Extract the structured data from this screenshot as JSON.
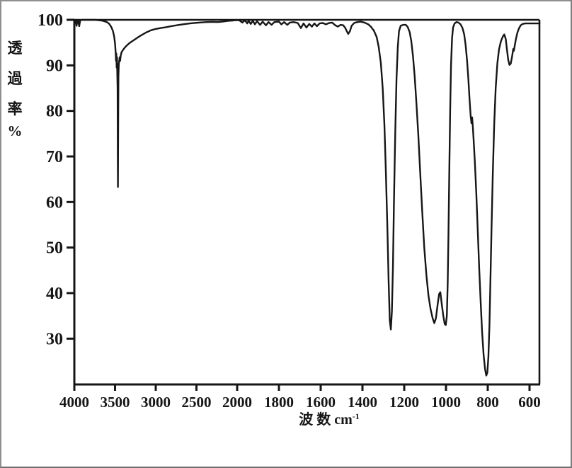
{
  "figure": {
    "background": "#ffffff",
    "ink_color": "#161616",
    "border_color": "#8f8f8f"
  },
  "chart_data": {
    "type": "line",
    "title": "",
    "xlabel_prefix": "波 数 cm",
    "xlabel_sup": "-1",
    "ylabel_chars": [
      "透",
      "過",
      "率",
      "%"
    ],
    "x_axis": {
      "ticks": [
        4000,
        3500,
        3000,
        2500,
        2000,
        1800,
        1600,
        1400,
        1200,
        1000,
        800,
        600
      ],
      "range": [
        4000,
        550
      ],
      "scale_note": "dual linear scale: 500/div above 2000 cm-1, 200/div below",
      "unit": "cm-1"
    },
    "y_axis": {
      "ticks": [
        100,
        90,
        80,
        70,
        60,
        50,
        40,
        30
      ],
      "range": [
        20,
        100
      ],
      "unit": "%"
    },
    "grid": false,
    "legend": false,
    "series": [
      {
        "name": "transmittance",
        "color": "#161616",
        "points": [
          [
            4000,
            99.9
          ],
          [
            3990,
            100
          ],
          [
            3982,
            99.9
          ],
          [
            3972,
            98.7
          ],
          [
            3962,
            99.9
          ],
          [
            3952,
            99.7
          ],
          [
            3940,
            98.6
          ],
          [
            3928,
            99.9
          ],
          [
            3900,
            100
          ],
          [
            3820,
            100
          ],
          [
            3750,
            100
          ],
          [
            3700,
            99.9
          ],
          [
            3650,
            99.8
          ],
          [
            3600,
            99.5
          ],
          [
            3570,
            99.1
          ],
          [
            3545,
            98.4
          ],
          [
            3525,
            97.5
          ],
          [
            3510,
            96.3
          ],
          [
            3500,
            94.8
          ],
          [
            3493,
            93
          ],
          [
            3488,
            91
          ],
          [
            3484,
            92.6
          ],
          [
            3480,
            89.5
          ],
          [
            3476,
            91.8
          ],
          [
            3472,
            88
          ],
          [
            3469,
            85
          ],
          [
            3466,
            70
          ],
          [
            3464,
            63.3
          ],
          [
            3461,
            78
          ],
          [
            3458,
            87.5
          ],
          [
            3454,
            90.2
          ],
          [
            3449,
            91
          ],
          [
            3443,
            91.8
          ],
          [
            3437,
            91
          ],
          [
            3430,
            92.2
          ],
          [
            3420,
            92.9
          ],
          [
            3405,
            93.3
          ],
          [
            3385,
            93.8
          ],
          [
            3360,
            94.3
          ],
          [
            3330,
            94.8
          ],
          [
            3290,
            95.3
          ],
          [
            3240,
            95.9
          ],
          [
            3180,
            96.6
          ],
          [
            3120,
            97.2
          ],
          [
            3060,
            97.7
          ],
          [
            3000,
            98
          ],
          [
            2940,
            98.2
          ],
          [
            2880,
            98.35
          ],
          [
            2810,
            98.6
          ],
          [
            2730,
            98.85
          ],
          [
            2650,
            99.05
          ],
          [
            2560,
            99.25
          ],
          [
            2470,
            99.4
          ],
          [
            2380,
            99.5
          ],
          [
            2300,
            99.55
          ],
          [
            2240,
            99.5
          ],
          [
            2180,
            99.6
          ],
          [
            2120,
            99.75
          ],
          [
            2060,
            99.85
          ],
          [
            2020,
            99.9
          ],
          [
            1990,
            99.9
          ],
          [
            1975,
            99.4
          ],
          [
            1963,
            99.9
          ],
          [
            1952,
            99.2
          ],
          [
            1945,
            99.8
          ],
          [
            1935,
            99.1
          ],
          [
            1925,
            99.8
          ],
          [
            1915,
            99
          ],
          [
            1905,
            99.7
          ],
          [
            1890,
            98.9
          ],
          [
            1878,
            99.6
          ],
          [
            1862,
            98.8
          ],
          [
            1850,
            99.5
          ],
          [
            1835,
            98.9
          ],
          [
            1822,
            99.5
          ],
          [
            1800,
            99.6
          ],
          [
            1788,
            99
          ],
          [
            1775,
            99.5
          ],
          [
            1760,
            98.9
          ],
          [
            1748,
            99.4
          ],
          [
            1730,
            99.5
          ],
          [
            1710,
            99.3
          ],
          [
            1695,
            98.2
          ],
          [
            1682,
            99.2
          ],
          [
            1668,
            98.3
          ],
          [
            1655,
            99.1
          ],
          [
            1642,
            98.5
          ],
          [
            1630,
            99.2
          ],
          [
            1618,
            98.6
          ],
          [
            1605,
            99.2
          ],
          [
            1590,
            99.3
          ],
          [
            1575,
            99
          ],
          [
            1560,
            99.3
          ],
          [
            1545,
            99.4
          ],
          [
            1530,
            98.8
          ],
          [
            1518,
            98.5
          ],
          [
            1505,
            98.9
          ],
          [
            1492,
            98.8
          ],
          [
            1482,
            98.2
          ],
          [
            1475,
            97.5
          ],
          [
            1468,
            96.9
          ],
          [
            1460,
            97.5
          ],
          [
            1452,
            98.7
          ],
          [
            1440,
            99.3
          ],
          [
            1425,
            99.5
          ],
          [
            1408,
            99.6
          ],
          [
            1390,
            99.4
          ],
          [
            1372,
            99
          ],
          [
            1358,
            98.4
          ],
          [
            1345,
            97.6
          ],
          [
            1332,
            96.2
          ],
          [
            1322,
            94
          ],
          [
            1312,
            90.5
          ],
          [
            1303,
            85
          ],
          [
            1295,
            77
          ],
          [
            1288,
            67
          ],
          [
            1281,
            55
          ],
          [
            1275,
            43
          ],
          [
            1269,
            34
          ],
          [
            1264,
            32
          ],
          [
            1259,
            36
          ],
          [
            1254,
            46
          ],
          [
            1249,
            60
          ],
          [
            1243,
            75
          ],
          [
            1237,
            87
          ],
          [
            1231,
            94
          ],
          [
            1225,
            97.5
          ],
          [
            1217,
            98.7
          ],
          [
            1205,
            98.9
          ],
          [
            1192,
            98.9
          ],
          [
            1183,
            98.4
          ],
          [
            1174,
            97.3
          ],
          [
            1166,
            95.3
          ],
          [
            1158,
            92
          ],
          [
            1150,
            87.5
          ],
          [
            1142,
            82
          ],
          [
            1133,
            75
          ],
          [
            1124,
            67
          ],
          [
            1114,
            58
          ],
          [
            1104,
            50
          ],
          [
            1094,
            44
          ],
          [
            1084,
            39.5
          ],
          [
            1074,
            36.5
          ],
          [
            1064,
            34.5
          ],
          [
            1056,
            33.4
          ],
          [
            1048,
            34.5
          ],
          [
            1040,
            37.5
          ],
          [
            1033,
            39.8
          ],
          [
            1027,
            40.2
          ],
          [
            1020,
            37.5
          ],
          [
            1013,
            35
          ],
          [
            1006,
            33.2
          ],
          [
            1001,
            33
          ],
          [
            996,
            35
          ],
          [
            992,
            42
          ],
          [
            988,
            53
          ],
          [
            984,
            67
          ],
          [
            980,
            80
          ],
          [
            976,
            90
          ],
          [
            971,
            96
          ],
          [
            966,
            98.3
          ],
          [
            959,
            99.2
          ],
          [
            950,
            99.5
          ],
          [
            940,
            99.4
          ],
          [
            930,
            99
          ],
          [
            921,
            98.2
          ],
          [
            913,
            96.8
          ],
          [
            906,
            94.5
          ],
          [
            899,
            91
          ],
          [
            893,
            87
          ],
          [
            887,
            82.5
          ],
          [
            882,
            79
          ],
          [
            878,
            77.3
          ],
          [
            875,
            78.6
          ],
          [
            872,
            76.8
          ],
          [
            868,
            74
          ],
          [
            862,
            69
          ],
          [
            855,
            62
          ],
          [
            848,
            54
          ],
          [
            841,
            45.5
          ],
          [
            834,
            38
          ],
          [
            827,
            31.5
          ],
          [
            820,
            26.5
          ],
          [
            813,
            23.3
          ],
          [
            807,
            21.9
          ],
          [
            802,
            22.5
          ],
          [
            797,
            26
          ],
          [
            792,
            33
          ],
          [
            787,
            43
          ],
          [
            782,
            54
          ],
          [
            776,
            66
          ],
          [
            769,
            77
          ],
          [
            762,
            85
          ],
          [
            754,
            90.5
          ],
          [
            746,
            93.5
          ],
          [
            737,
            95.3
          ],
          [
            728,
            96.3
          ],
          [
            721,
            96.8
          ],
          [
            714,
            95.8
          ],
          [
            708,
            93.5
          ],
          [
            702,
            91.2
          ],
          [
            696,
            90.1
          ],
          [
            690,
            90.4
          ],
          [
            684,
            91.8
          ],
          [
            678,
            93.6
          ],
          [
            675,
            93.2
          ],
          [
            671,
            94.3
          ],
          [
            665,
            95.8
          ],
          [
            658,
            97.2
          ],
          [
            650,
            98.2
          ],
          [
            642,
            98.8
          ],
          [
            633,
            99.1
          ],
          [
            620,
            99.2
          ],
          [
            600,
            99.2
          ],
          [
            575,
            99.2
          ],
          [
            552,
            99.2
          ]
        ]
      }
    ]
  }
}
